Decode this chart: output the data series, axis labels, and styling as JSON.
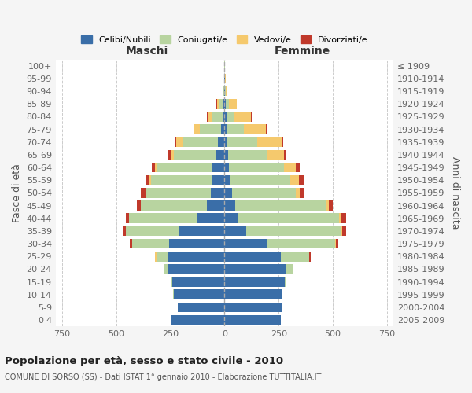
{
  "age_groups": [
    "0-4",
    "5-9",
    "10-14",
    "15-19",
    "20-24",
    "25-29",
    "30-34",
    "35-39",
    "40-44",
    "45-49",
    "50-54",
    "55-59",
    "60-64",
    "65-69",
    "70-74",
    "75-79",
    "80-84",
    "85-89",
    "90-94",
    "95-99",
    "100+"
  ],
  "birth_years": [
    "2005-2009",
    "2000-2004",
    "1995-1999",
    "1990-1994",
    "1985-1989",
    "1980-1984",
    "1975-1979",
    "1970-1974",
    "1965-1969",
    "1960-1964",
    "1955-1959",
    "1950-1954",
    "1945-1949",
    "1940-1944",
    "1935-1939",
    "1930-1934",
    "1925-1929",
    "1920-1924",
    "1915-1919",
    "1910-1914",
    "≤ 1909"
  ],
  "males_celibi": [
    250,
    215,
    235,
    240,
    265,
    260,
    255,
    210,
    130,
    80,
    65,
    60,
    55,
    40,
    30,
    15,
    8,
    5,
    2,
    1,
    0
  ],
  "males_coniugati": [
    0,
    0,
    2,
    5,
    15,
    55,
    170,
    245,
    310,
    305,
    295,
    280,
    255,
    195,
    165,
    100,
    50,
    20,
    5,
    2,
    1
  ],
  "males_vedovi": [
    0,
    0,
    0,
    0,
    2,
    5,
    2,
    2,
    2,
    3,
    3,
    5,
    10,
    15,
    30,
    25,
    20,
    10,
    1,
    0,
    0
  ],
  "males_divorziati": [
    0,
    0,
    0,
    0,
    1,
    2,
    10,
    15,
    12,
    18,
    22,
    20,
    15,
    8,
    5,
    3,
    2,
    2,
    0,
    0,
    0
  ],
  "females_nubili": [
    260,
    265,
    265,
    280,
    285,
    260,
    200,
    100,
    60,
    50,
    35,
    25,
    20,
    15,
    12,
    10,
    8,
    5,
    2,
    1,
    0
  ],
  "females_coniugate": [
    0,
    0,
    2,
    5,
    30,
    130,
    310,
    435,
    470,
    420,
    295,
    280,
    255,
    180,
    140,
    80,
    35,
    15,
    5,
    2,
    1
  ],
  "females_vedove": [
    0,
    0,
    0,
    0,
    2,
    2,
    5,
    8,
    10,
    10,
    18,
    40,
    55,
    80,
    110,
    100,
    80,
    35,
    5,
    1,
    0
  ],
  "females_divorziate": [
    0,
    0,
    0,
    0,
    2,
    5,
    12,
    18,
    20,
    20,
    22,
    22,
    18,
    10,
    8,
    5,
    2,
    2,
    0,
    0,
    0
  ],
  "color_celibi": "#3a6ea8",
  "color_coniugati": "#b8d4a0",
  "color_vedovi": "#f5c96d",
  "color_divorziati": "#c0392b",
  "xlim": 780,
  "title": "Popolazione per età, sesso e stato civile - 2010",
  "subtitle": "COMUNE DI SORSO (SS) - Dati ISTAT 1° gennaio 2010 - Elaborazione TUTTITALIA.IT",
  "label_maschi": "Maschi",
  "label_femmine": "Femmine",
  "ylabel_left": "Fasce di età",
  "ylabel_right": "Anni di nascita",
  "legend_labels": [
    "Celibi/Nubili",
    "Coniugati/e",
    "Vedovi/e",
    "Divorziati/e"
  ],
  "bg_color": "#f5f5f5",
  "plot_bg": "#ffffff",
  "grid_color": "#cccccc"
}
